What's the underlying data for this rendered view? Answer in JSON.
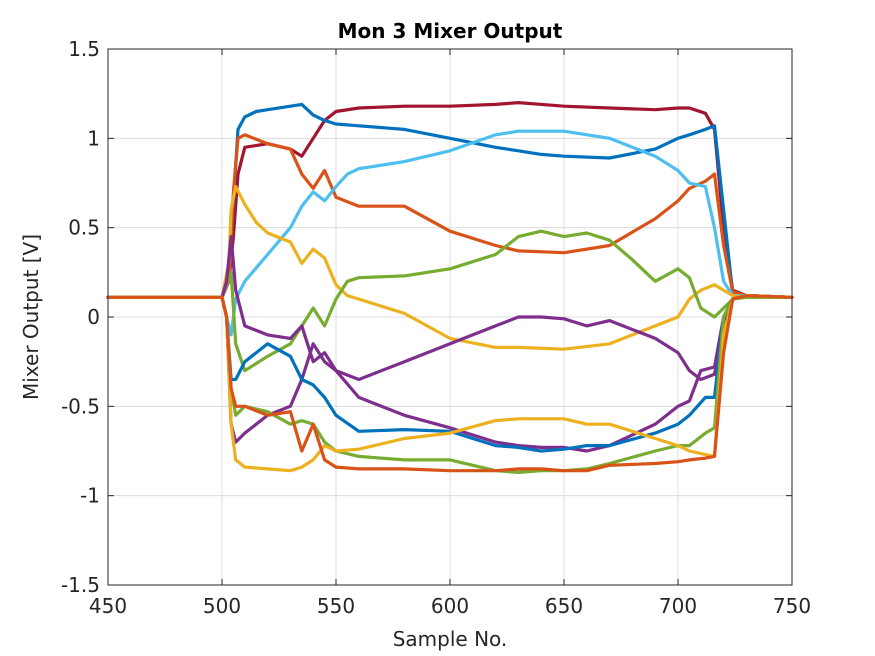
{
  "chart_data": {
    "type": "line",
    "title": "Mon 3 Mixer Output",
    "xlabel": "Sample No.",
    "ylabel": "Mixer Output [V]",
    "xlim": [
      450,
      750
    ],
    "ylim": [
      -1.5,
      1.5
    ],
    "xticks": [
      450,
      500,
      550,
      600,
      650,
      700,
      750
    ],
    "yticks": [
      -1.5,
      -1,
      -0.5,
      0,
      0.5,
      1,
      1.5
    ],
    "xtick_labels": [
      "450",
      "500",
      "550",
      "600",
      "650",
      "700",
      "750"
    ],
    "ytick_labels": [
      "-1.5",
      "-1",
      "-0.5",
      "0",
      "0.5",
      "1",
      "1.5"
    ],
    "grid": true,
    "series": [
      {
        "color": "#A2142F",
        "x": [
          450,
          500,
          503,
          505,
          507,
          510,
          520,
          530,
          535,
          540,
          545,
          550,
          560,
          580,
          600,
          620,
          630,
          650,
          670,
          690,
          700,
          705,
          712,
          716,
          720,
          724,
          730,
          750
        ],
        "y": [
          0.11,
          0.11,
          0.2,
          0.45,
          0.8,
          0.95,
          0.97,
          0.94,
          0.9,
          1.0,
          1.1,
          1.15,
          1.17,
          1.18,
          1.18,
          1.19,
          1.2,
          1.18,
          1.17,
          1.16,
          1.17,
          1.17,
          1.14,
          1.05,
          0.5,
          0.15,
          0.12,
          0.11
        ]
      },
      {
        "color": "#0072BD",
        "x": [
          450,
          500,
          503,
          505,
          507,
          510,
          515,
          520,
          530,
          535,
          540,
          545,
          550,
          560,
          580,
          600,
          620,
          630,
          640,
          650,
          670,
          690,
          700,
          705,
          712,
          716,
          720,
          724,
          730,
          750
        ],
        "y": [
          0.11,
          0.11,
          0.2,
          0.65,
          1.05,
          1.12,
          1.15,
          1.16,
          1.18,
          1.19,
          1.13,
          1.1,
          1.08,
          1.07,
          1.05,
          1.0,
          0.95,
          0.93,
          0.91,
          0.9,
          0.89,
          0.94,
          1.0,
          1.02,
          1.05,
          1.07,
          0.6,
          0.13,
          0.12,
          0.11
        ]
      },
      {
        "color": "#D95319",
        "x": [
          450,
          500,
          503,
          505,
          507,
          510,
          520,
          530,
          535,
          540,
          545,
          550,
          560,
          580,
          600,
          620,
          630,
          650,
          670,
          690,
          700,
          705,
          712,
          716,
          720,
          724,
          730,
          750
        ],
        "y": [
          0.11,
          0.11,
          0.2,
          0.7,
          1.0,
          1.02,
          0.97,
          0.94,
          0.8,
          0.72,
          0.82,
          0.67,
          0.62,
          0.62,
          0.48,
          0.4,
          0.37,
          0.36,
          0.4,
          0.55,
          0.65,
          0.72,
          0.76,
          0.8,
          0.4,
          0.14,
          0.12,
          0.11
        ]
      },
      {
        "color": "#4DBEEE",
        "x": [
          450,
          500,
          502,
          504,
          506,
          510,
          520,
          530,
          535,
          540,
          545,
          550,
          555,
          560,
          580,
          600,
          620,
          630,
          650,
          670,
          690,
          700,
          705,
          712,
          716,
          720,
          724,
          730,
          750
        ],
        "y": [
          0.11,
          0.11,
          0.0,
          -0.1,
          0.1,
          0.2,
          0.35,
          0.5,
          0.62,
          0.7,
          0.65,
          0.73,
          0.8,
          0.83,
          0.87,
          0.93,
          1.02,
          1.04,
          1.04,
          1.0,
          0.9,
          0.82,
          0.75,
          0.73,
          0.5,
          0.2,
          0.12,
          0.12,
          0.11
        ]
      },
      {
        "color": "#EDB120",
        "x": [
          450,
          500,
          503,
          504,
          506,
          510,
          515,
          520,
          530,
          535,
          540,
          545,
          550,
          555,
          560,
          580,
          600,
          620,
          630,
          650,
          670,
          690,
          700,
          705,
          710,
          716,
          720,
          724,
          730,
          750
        ],
        "y": [
          0.11,
          0.11,
          0.3,
          0.6,
          0.73,
          0.63,
          0.53,
          0.47,
          0.42,
          0.3,
          0.38,
          0.33,
          0.18,
          0.12,
          0.1,
          0.02,
          -0.12,
          -0.17,
          -0.17,
          -0.18,
          -0.15,
          -0.05,
          0.0,
          0.1,
          0.15,
          0.18,
          0.15,
          0.12,
          0.11,
          0.11
        ]
      },
      {
        "color": "#77AC30",
        "x": [
          450,
          500,
          502,
          504,
          506,
          510,
          520,
          530,
          535,
          540,
          545,
          550,
          555,
          560,
          580,
          600,
          620,
          630,
          640,
          650,
          660,
          670,
          680,
          690,
          700,
          705,
          710,
          716,
          720,
          724,
          730,
          750
        ],
        "y": [
          0.11,
          0.11,
          0.18,
          0.25,
          -0.15,
          -0.3,
          -0.22,
          -0.15,
          -0.05,
          0.05,
          -0.05,
          0.1,
          0.2,
          0.22,
          0.23,
          0.27,
          0.35,
          0.45,
          0.48,
          0.45,
          0.47,
          0.43,
          0.32,
          0.2,
          0.27,
          0.22,
          0.05,
          0.0,
          0.05,
          0.1,
          0.11,
          0.11
        ]
      },
      {
        "color": "#7E2F8E",
        "x": [
          450,
          500,
          502,
          504,
          506,
          510,
          520,
          530,
          535,
          540,
          545,
          550,
          560,
          580,
          600,
          620,
          630,
          640,
          650,
          660,
          670,
          690,
          700,
          705,
          710,
          716,
          720,
          724,
          730,
          750
        ],
        "y": [
          0.11,
          0.11,
          0.2,
          0.45,
          0.15,
          -0.05,
          -0.1,
          -0.12,
          -0.05,
          -0.25,
          -0.2,
          -0.3,
          -0.45,
          -0.55,
          -0.62,
          -0.7,
          -0.72,
          -0.73,
          -0.73,
          -0.75,
          -0.72,
          -0.6,
          -0.5,
          -0.47,
          -0.3,
          -0.28,
          0.0,
          0.1,
          0.12,
          0.11
        ]
      },
      {
        "color": "#7E2F8E",
        "x": [
          450,
          500,
          502,
          504,
          506,
          510,
          520,
          530,
          535,
          540,
          545,
          550,
          560,
          580,
          600,
          620,
          630,
          640,
          650,
          660,
          670,
          690,
          700,
          705,
          710,
          716,
          720,
          724,
          730,
          750
        ],
        "y": [
          0.11,
          0.11,
          0.0,
          -0.6,
          -0.7,
          -0.65,
          -0.55,
          -0.5,
          -0.35,
          -0.15,
          -0.25,
          -0.3,
          -0.35,
          -0.25,
          -0.15,
          -0.05,
          0.0,
          0.0,
          -0.01,
          -0.05,
          -0.02,
          -0.12,
          -0.2,
          -0.3,
          -0.35,
          -0.32,
          -0.05,
          0.1,
          0.12,
          0.11
        ]
      },
      {
        "color": "#0072BD",
        "x": [
          450,
          500,
          502,
          504,
          506,
          510,
          520,
          530,
          535,
          540,
          545,
          550,
          560,
          580,
          600,
          620,
          630,
          640,
          650,
          660,
          670,
          690,
          700,
          705,
          712,
          716,
          720,
          724,
          730,
          750
        ],
        "y": [
          0.11,
          0.11,
          0.0,
          -0.35,
          -0.35,
          -0.25,
          -0.15,
          -0.22,
          -0.35,
          -0.38,
          -0.45,
          -0.55,
          -0.64,
          -0.63,
          -0.64,
          -0.72,
          -0.73,
          -0.75,
          -0.74,
          -0.72,
          -0.72,
          -0.65,
          -0.6,
          -0.55,
          -0.45,
          -0.45,
          0.0,
          0.1,
          0.12,
          0.11
        ]
      },
      {
        "color": "#77AC30",
        "x": [
          450,
          500,
          502,
          504,
          506,
          510,
          520,
          530,
          535,
          540,
          545,
          550,
          560,
          580,
          600,
          620,
          630,
          640,
          650,
          660,
          670,
          690,
          700,
          705,
          712,
          716,
          720,
          724,
          730,
          750
        ],
        "y": [
          0.11,
          0.11,
          0.0,
          -0.4,
          -0.55,
          -0.5,
          -0.53,
          -0.6,
          -0.58,
          -0.6,
          -0.7,
          -0.75,
          -0.78,
          -0.8,
          -0.8,
          -0.86,
          -0.87,
          -0.86,
          -0.86,
          -0.85,
          -0.82,
          -0.75,
          -0.72,
          -0.72,
          -0.65,
          -0.62,
          0.0,
          0.1,
          0.12,
          0.11
        ]
      },
      {
        "color": "#EDB120",
        "x": [
          450,
          500,
          502,
          504,
          506,
          510,
          520,
          530,
          535,
          540,
          545,
          550,
          560,
          580,
          600,
          620,
          630,
          640,
          650,
          660,
          670,
          690,
          700,
          705,
          712,
          716,
          720,
          724,
          730,
          750
        ],
        "y": [
          0.11,
          0.11,
          0.0,
          -0.6,
          -0.8,
          -0.84,
          -0.85,
          -0.86,
          -0.84,
          -0.8,
          -0.72,
          -0.75,
          -0.74,
          -0.68,
          -0.65,
          -0.58,
          -0.57,
          -0.57,
          -0.57,
          -0.6,
          -0.6,
          -0.68,
          -0.72,
          -0.75,
          -0.77,
          -0.78,
          -0.1,
          0.1,
          0.12,
          0.11
        ]
      },
      {
        "color": "#D95319",
        "x": [
          450,
          500,
          502,
          504,
          506,
          510,
          520,
          530,
          535,
          540,
          545,
          550,
          560,
          580,
          600,
          620,
          630,
          640,
          650,
          660,
          670,
          690,
          700,
          705,
          712,
          716,
          720,
          724,
          730,
          750
        ],
        "y": [
          0.11,
          0.11,
          0.0,
          -0.4,
          -0.5,
          -0.5,
          -0.55,
          -0.53,
          -0.75,
          -0.6,
          -0.8,
          -0.84,
          -0.85,
          -0.85,
          -0.86,
          -0.86,
          -0.85,
          -0.85,
          -0.86,
          -0.86,
          -0.83,
          -0.82,
          -0.81,
          -0.8,
          -0.79,
          -0.78,
          -0.2,
          0.1,
          0.12,
          0.11
        ]
      }
    ]
  }
}
